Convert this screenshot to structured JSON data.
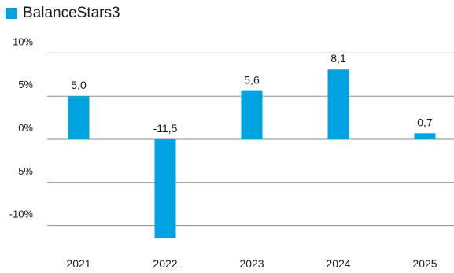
{
  "chart_data": {
    "type": "bar",
    "categories": [
      "2021",
      "2022",
      "2023",
      "2024",
      "2025"
    ],
    "series": [
      {
        "name": "BalanceStars3",
        "values": [
          5.0,
          -11.5,
          5.6,
          8.1,
          0.7
        ],
        "labels": [
          "5,0",
          "-11,5",
          "5,6",
          "8,1",
          "0,7"
        ],
        "color": "#00a3e0"
      }
    ],
    "y_ticks": [
      10,
      5,
      0,
      -5,
      -10
    ],
    "y_tick_labels": [
      "10%",
      "5%",
      "0%",
      "-5%",
      "-10%"
    ],
    "ylim": [
      -12,
      10
    ],
    "grid": true,
    "legend": "top-left"
  }
}
